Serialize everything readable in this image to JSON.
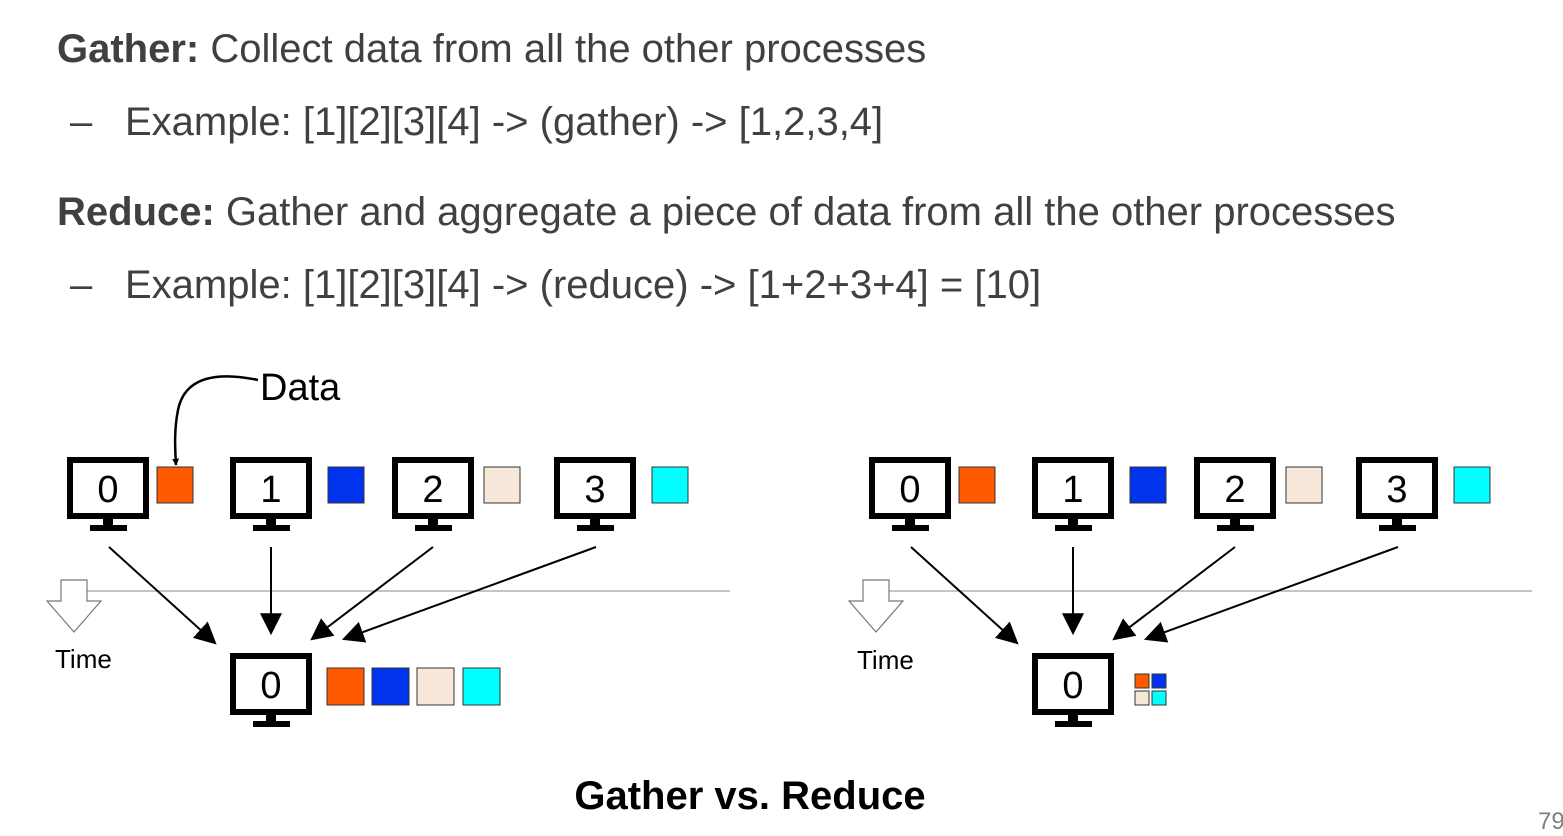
{
  "bullets": [
    {
      "term": "Gather:",
      "text": " Collect data from all the other processes"
    },
    {
      "example": "Example: [1][2][3][4] -> (gather) -> [1,2,3,4]"
    },
    {
      "term": "Reduce:",
      "text": " Gather and aggregate a piece of data from all the other processes"
    },
    {
      "example": "Example: [1][2][3][4] -> (reduce) -> [1+2+3+4] = [10]"
    }
  ],
  "dash": "–",
  "diagram": {
    "data_label": "Data",
    "time_label": "Time",
    "process_ids": [
      "0",
      "1",
      "2",
      "3"
    ],
    "root_id": "0",
    "colors": {
      "p0": "#ff5a00",
      "p1": "#0033ee",
      "p2": "#f7e8da",
      "p3": "#00ffff"
    }
  },
  "caption": "Gather vs. Reduce",
  "page_number": "79"
}
